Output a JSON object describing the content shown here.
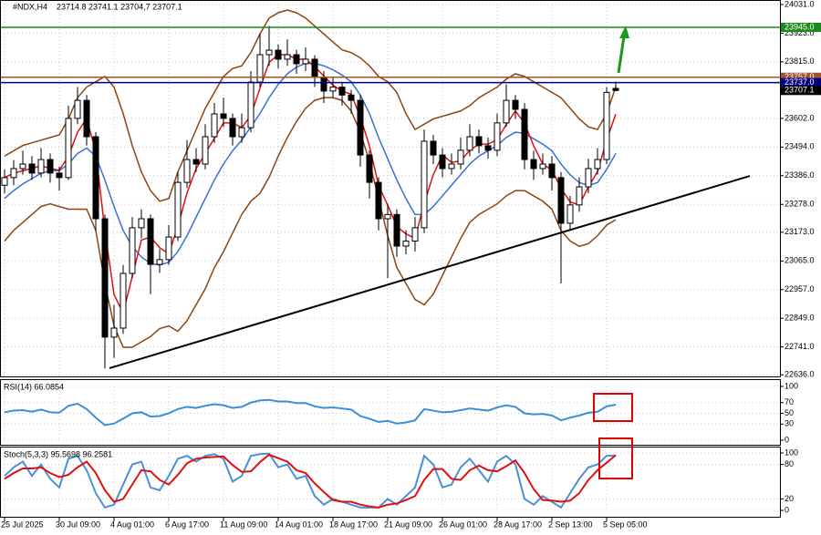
{
  "chart_data": [
    {
      "type": "candlestick",
      "title": "#NDX,H4",
      "subtitle": "23714.8 23741.1 23704,7 23707.1",
      "categories": [
        "25 Jul 2025",
        null,
        null,
        null,
        null,
        null,
        "30 Jul 09:00",
        null,
        null,
        null,
        null,
        null,
        "4 Aug 01:00",
        null,
        null,
        null,
        null,
        null,
        "6 Aug 17:00",
        null,
        null,
        null,
        null,
        null,
        "11 Aug 09:00",
        null,
        null,
        null,
        null,
        null,
        "14 Aug 01:00",
        null,
        null,
        null,
        null,
        null,
        "18 Aug 17:00",
        null,
        null,
        null,
        null,
        null,
        "21 Aug 09:00",
        null,
        null,
        null,
        null,
        null,
        "26 Aug 01:00",
        null,
        null,
        null,
        null,
        null,
        "28 Aug 17:00",
        null,
        null,
        null,
        null,
        null,
        "2 Sep 13:00",
        null,
        null,
        null,
        null,
        null,
        "5 Sep 05:00",
        null
      ],
      "open": [
        23350,
        23379,
        23413,
        23430,
        23396,
        23447,
        23396,
        23379,
        23602,
        23670,
        23533,
        23224,
        22778,
        22812,
        23018,
        23190,
        23224,
        23052,
        23070,
        23155,
        23361,
        23447,
        23430,
        23533,
        23619,
        23602,
        23533,
        23567,
        23739,
        23842,
        23859,
        23825,
        23842,
        23808,
        23825,
        23756,
        23705,
        23720,
        23690,
        23670,
        23464,
        23361,
        23224,
        23240,
        23121,
        23140,
        23190,
        23516,
        23464,
        23413,
        23430,
        23482,
        23533,
        23499,
        23482,
        23585,
        23670,
        23636,
        23447,
        23413,
        23430,
        23379,
        23207,
        23276,
        23344,
        23413,
        23447,
        23714.8
      ],
      "high": [
        23410,
        23445,
        23480,
        23460,
        23490,
        23470,
        23420,
        23650,
        23720,
        23690,
        23550,
        23240,
        22900,
        23050,
        23230,
        23260,
        23240,
        23110,
        23200,
        23400,
        23520,
        23490,
        23580,
        23660,
        23680,
        23620,
        23620,
        23780,
        23920,
        23950,
        23880,
        23900,
        23860,
        23870,
        23840,
        23780,
        23760,
        23740,
        23710,
        23690,
        23480,
        23380,
        23280,
        23260,
        23180,
        23230,
        23560,
        23540,
        23490,
        23470,
        23530,
        23580,
        23560,
        23530,
        23620,
        23730,
        23690,
        23660,
        23480,
        23470,
        23460,
        23400,
        23310,
        23380,
        23450,
        23490,
        23720,
        23741.1
      ],
      "low": [
        23320,
        23350,
        23390,
        23370,
        23380,
        23360,
        23330,
        23370,
        23580,
        23500,
        23180,
        22660,
        22700,
        22790,
        23000,
        23150,
        22940,
        23020,
        23050,
        23140,
        23340,
        23400,
        23410,
        23510,
        23570,
        23500,
        23510,
        23550,
        23720,
        23800,
        23790,
        23800,
        23770,
        23780,
        23720,
        23660,
        23680,
        23650,
        23620,
        23420,
        23300,
        23180,
        23000,
        23080,
        23090,
        23100,
        23170,
        23430,
        23380,
        23390,
        23410,
        23460,
        23470,
        23450,
        23460,
        23570,
        23600,
        23410,
        23370,
        23390,
        23330,
        22980,
        23180,
        23250,
        23320,
        23390,
        23430,
        23704.7
      ],
      "close": [
        23379,
        23413,
        23430,
        23396,
        23447,
        23396,
        23379,
        23602,
        23670,
        23533,
        23224,
        22778,
        22812,
        23018,
        23190,
        23224,
        23052,
        23070,
        23155,
        23361,
        23447,
        23430,
        23533,
        23619,
        23602,
        23533,
        23567,
        23739,
        23842,
        23859,
        23825,
        23842,
        23808,
        23825,
        23756,
        23705,
        23720,
        23690,
        23670,
        23464,
        23361,
        23224,
        23240,
        23121,
        23140,
        23190,
        23516,
        23464,
        23413,
        23430,
        23482,
        23533,
        23499,
        23482,
        23585,
        23670,
        23636,
        23447,
        23413,
        23430,
        23379,
        23207,
        23276,
        23344,
        23413,
        23447,
        23700,
        23707.1
      ],
      "color_up": "#ffffff",
      "color_down": "#000000",
      "series": [
        {
          "color": "#8b4513",
          "values": [
            23460,
            23480,
            23500,
            23510,
            23520,
            23530,
            23540,
            23600,
            23680,
            23720,
            23740,
            23760,
            23720,
            23620,
            23500,
            23400,
            23330,
            23290,
            23300,
            23400,
            23480,
            23560,
            23640,
            23700,
            23760,
            23790,
            23800,
            23850,
            23920,
            23980,
            24000,
            24010,
            24000,
            23980,
            23950,
            23920,
            23890,
            23860,
            23850,
            23830,
            23800,
            23760,
            23740,
            23700,
            23620,
            23560,
            23580,
            23600,
            23610,
            23620,
            23630,
            23650,
            23680,
            23700,
            23720,
            23750,
            23770,
            23760,
            23740,
            23720,
            23700,
            23680,
            23640,
            23600,
            23570,
            23560,
            23620,
            23720
          ]
        },
        {
          "color": "#8b4513",
          "values": [
            23140,
            23180,
            23210,
            23240,
            23270,
            23280,
            23270,
            23260,
            23260,
            23260,
            23180,
            22980,
            22820,
            22740,
            22740,
            22760,
            22780,
            22810,
            22820,
            22800,
            22840,
            22900,
            22960,
            23040,
            23100,
            23170,
            23240,
            23290,
            23320,
            23380,
            23460,
            23530,
            23590,
            23640,
            23670,
            23680,
            23680,
            23670,
            23630,
            23550,
            23440,
            23300,
            23160,
            23040,
            22980,
            22920,
            22900,
            22940,
            23010,
            23080,
            23150,
            23210,
            23240,
            23260,
            23280,
            23310,
            23330,
            23330,
            23310,
            23290,
            23260,
            23180,
            23140,
            23120,
            23130,
            23160,
            23200,
            23220
          ]
        },
        {
          "color": "#3a6fd8",
          "values": [
            23300,
            23330,
            23355,
            23375,
            23395,
            23405,
            23405,
            23430,
            23470,
            23490,
            23460,
            23370,
            23270,
            23180,
            23120,
            23080,
            23055,
            23050,
            23060,
            23100,
            23160,
            23230,
            23300,
            23370,
            23430,
            23480,
            23520,
            23570,
            23620,
            23680,
            23730,
            23770,
            23795,
            23810,
            23810,
            23800,
            23785,
            23765,
            23740,
            23690,
            23620,
            23530,
            23450,
            23370,
            23300,
            23240,
            23240,
            23270,
            23310,
            23350,
            23390,
            23430,
            23460,
            23480,
            23500,
            23530,
            23550,
            23545,
            23525,
            23505,
            23480,
            23430,
            23390,
            23360,
            23350,
            23360,
            23410,
            23470
          ]
        },
        {
          "color": "#e01010",
          "values": [
            23380,
            23395,
            23405,
            23413,
            23424,
            23413,
            23407,
            23459,
            23550,
            23602,
            23476,
            23178,
            22938,
            22869,
            23007,
            23144,
            23155,
            23115,
            23092,
            23195,
            23321,
            23413,
            23470,
            23527,
            23585,
            23585,
            23567,
            23613,
            23716,
            23813,
            23842,
            23842,
            23825,
            23825,
            23796,
            23762,
            23727,
            23705,
            23693,
            23608,
            23498,
            23350,
            23275,
            23195,
            23167,
            23150,
            23282,
            23390,
            23464,
            23436,
            23442,
            23482,
            23505,
            23505,
            23522,
            23579,
            23630,
            23584,
            23499,
            23430,
            23407,
            23339,
            23287,
            23276,
            23344,
            23401,
            23520,
            23618
          ]
        }
      ],
      "ylim": [
        22630,
        24048
      ],
      "yticks": [
        {
          "value": 22636,
          "label": "22636.0"
        },
        {
          "value": 22741,
          "label": "22741.0"
        },
        {
          "value": 22849,
          "label": "22849.0"
        },
        {
          "value": 22957,
          "label": "22957.0"
        },
        {
          "value": 23065,
          "label": "23065.0"
        },
        {
          "value": 23173,
          "label": "23173.0"
        },
        {
          "value": 23278,
          "label": "23278.0"
        },
        {
          "value": 23386,
          "label": "23386.0"
        },
        {
          "value": 23494,
          "label": "23494.0"
        },
        {
          "value": 23602,
          "label": "23602.0"
        },
        {
          "value": 23815,
          "label": "23815.0"
        },
        {
          "value": 23923,
          "label": "23923.0"
        },
        {
          "value": 24031,
          "label": "24031.0"
        }
      ],
      "grid": true,
      "levels": [
        {
          "value": 23945,
          "label": "23945.0",
          "color": "#1a8a1a"
        },
        {
          "value": 23757,
          "label": "23757.0",
          "color": "#a0522d"
        },
        {
          "value": 23737,
          "label": "23737.0",
          "color": "#000080"
        }
      ],
      "last_price": 23707.1,
      "trendline": {
        "x": [
          11.5,
          81.7
        ],
        "y": [
          22661,
          23385
        ],
        "color": "#000000"
      }
    },
    {
      "type": "line",
      "title": "RSI(14) 66.0854",
      "series": [
        {
          "color": "#3a8fd9",
          "values": [
            52,
            55,
            56,
            53,
            57,
            52,
            51,
            64,
            68,
            58,
            42,
            28,
            31,
            40,
            50,
            52,
            44,
            45,
            50,
            58,
            62,
            60,
            64,
            67,
            65,
            60,
            62,
            70,
            74,
            75,
            72,
            72,
            69,
            69,
            63,
            60,
            61,
            59,
            57,
            45,
            40,
            34,
            36,
            31,
            33,
            37,
            58,
            55,
            52,
            53,
            56,
            59,
            57,
            55,
            61,
            65,
            62,
            50,
            48,
            49,
            46,
            37,
            42,
            46,
            51,
            53,
            63,
            66.0854
          ]
        }
      ],
      "ylim": [
        0,
        100
      ],
      "yticks": [
        0,
        30,
        50,
        70,
        100
      ]
    },
    {
      "type": "line",
      "title": "Stoch(5,3,3) 95.5698 96.2581",
      "series": [
        {
          "color": "#4a90d9",
          "values": [
            60,
            75,
            85,
            60,
            80,
            55,
            40,
            90,
            95,
            70,
            30,
            5,
            10,
            45,
            80,
            85,
            40,
            35,
            60,
            90,
            95,
            85,
            95,
            98,
            90,
            50,
            60,
            95,
            98,
            99,
            75,
            80,
            55,
            60,
            25,
            10,
            20,
            15,
            10,
            5,
            5,
            5,
            20,
            10,
            25,
            40,
            95,
            80,
            40,
            45,
            75,
            90,
            70,
            50,
            85,
            95,
            80,
            20,
            10,
            25,
            15,
            5,
            30,
            55,
            75,
            80,
            95,
            95.5698
          ]
        },
        {
          "color": "#e01010",
          "values": [
            55,
            65,
            73,
            73,
            75,
            65,
            58,
            62,
            75,
            85,
            65,
            35,
            15,
            20,
            45,
            70,
            68,
            53,
            45,
            62,
            82,
            90,
            92,
            93,
            94,
            79,
            67,
            68,
            84,
            97,
            91,
            85,
            70,
            65,
            47,
            32,
            18,
            15,
            15,
            10,
            7,
            5,
            10,
            12,
            18,
            25,
            53,
            72,
            72,
            55,
            53,
            70,
            78,
            70,
            68,
            77,
            87,
            65,
            37,
            18,
            17,
            15,
            17,
            30,
            53,
            70,
            83,
            96.2581
          ]
        }
      ],
      "ylim": [
        0,
        100
      ],
      "yticks": [
        0,
        20,
        80,
        100
      ]
    }
  ]
}
